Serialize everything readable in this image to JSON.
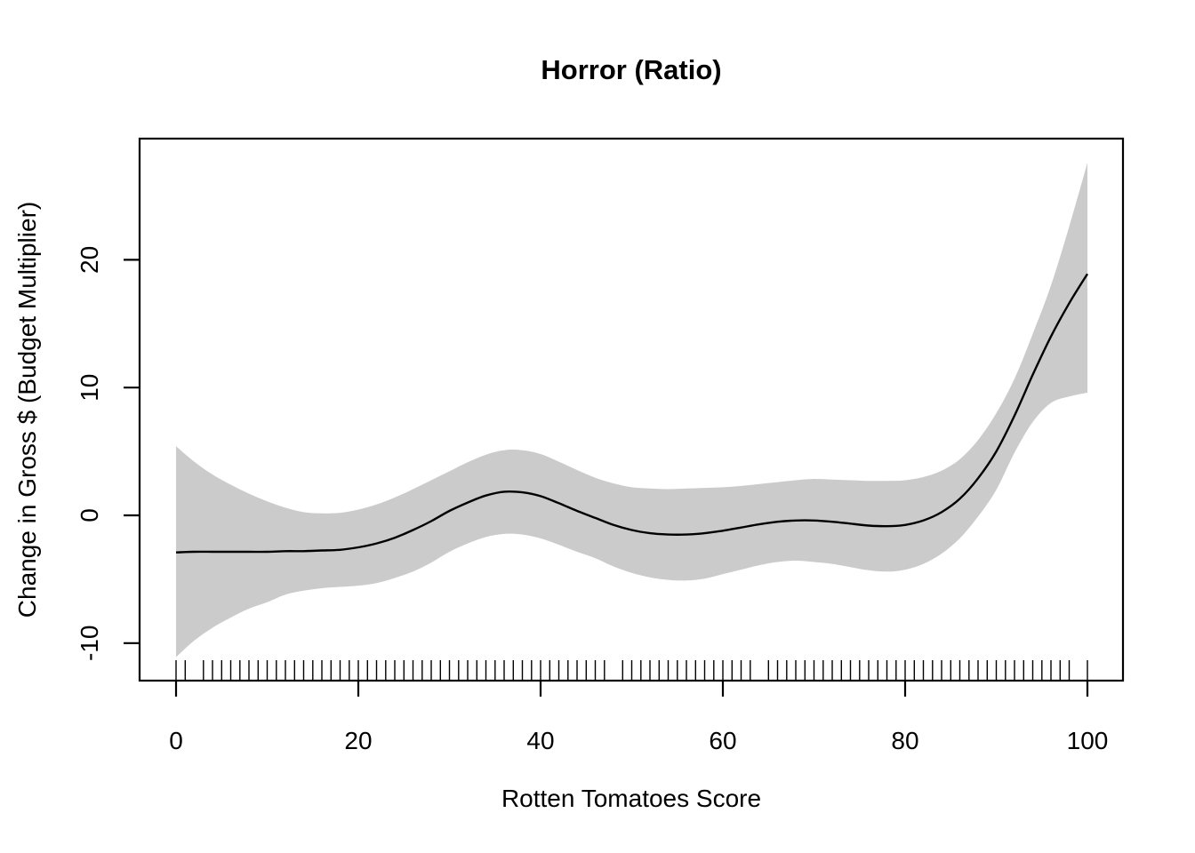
{
  "figure": {
    "background": "#FFFFFF",
    "foreground": "#000000"
  },
  "chart_data": {
    "type": "line",
    "title": "Horror (Ratio)",
    "xlabel": "Rotten Tomatoes Score",
    "ylabel": "Change in Gross $ (Budget Multiplier)",
    "x_ticks": [
      0,
      20,
      40,
      60,
      80,
      100
    ],
    "y_ticks": [
      -10,
      0,
      10,
      20
    ],
    "xlim": [
      -4,
      104
    ],
    "ylim": [
      -12.9,
      29.5
    ],
    "grid": false,
    "legend_position": "none",
    "band_color": "#CBCBCB",
    "line_color": "#000000",
    "series": [
      {
        "name": "smooth-estimate",
        "x": [
          0,
          2,
          4,
          6,
          8,
          10,
          12,
          14,
          16,
          18,
          20,
          22,
          24,
          26,
          28,
          30,
          32,
          34,
          36,
          38,
          40,
          42,
          44,
          46,
          48,
          50,
          52,
          54,
          56,
          58,
          60,
          62,
          64,
          66,
          68,
          70,
          72,
          74,
          76,
          78,
          80,
          82,
          84,
          86,
          88,
          90,
          92,
          94,
          96,
          98,
          100
        ],
        "y": [
          -2.9,
          -2.85,
          -2.85,
          -2.85,
          -2.85,
          -2.85,
          -2.8,
          -2.8,
          -2.75,
          -2.7,
          -2.5,
          -2.2,
          -1.75,
          -1.15,
          -0.45,
          0.35,
          1.0,
          1.55,
          1.85,
          1.8,
          1.5,
          0.95,
          0.35,
          -0.2,
          -0.75,
          -1.15,
          -1.4,
          -1.5,
          -1.5,
          -1.4,
          -1.2,
          -0.95,
          -0.7,
          -0.5,
          -0.4,
          -0.4,
          -0.5,
          -0.65,
          -0.8,
          -0.85,
          -0.75,
          -0.4,
          0.25,
          1.3,
          2.9,
          5.0,
          7.8,
          11.0,
          14.0,
          16.6,
          18.9
        ]
      }
    ],
    "confidence_band": {
      "x": [
        0,
        2,
        4,
        6,
        8,
        10,
        12,
        14,
        16,
        18,
        20,
        22,
        24,
        26,
        28,
        30,
        32,
        34,
        36,
        38,
        40,
        42,
        44,
        46,
        48,
        50,
        52,
        54,
        56,
        58,
        60,
        62,
        64,
        66,
        68,
        70,
        72,
        74,
        76,
        78,
        80,
        82,
        84,
        86,
        88,
        90,
        92,
        94,
        96,
        98,
        100
      ],
      "upper": [
        5.4,
        4.2,
        3.2,
        2.4,
        1.7,
        1.1,
        0.6,
        0.25,
        0.15,
        0.2,
        0.45,
        0.85,
        1.4,
        2.05,
        2.75,
        3.45,
        4.15,
        4.75,
        5.1,
        5.1,
        4.8,
        4.2,
        3.55,
        2.95,
        2.5,
        2.2,
        2.1,
        2.05,
        2.1,
        2.15,
        2.2,
        2.3,
        2.45,
        2.6,
        2.75,
        2.85,
        2.8,
        2.75,
        2.7,
        2.7,
        2.75,
        3.0,
        3.5,
        4.4,
        5.9,
        8.0,
        10.7,
        14.2,
        18.0,
        22.6,
        27.6
      ],
      "lower": [
        -11.1,
        -9.8,
        -8.8,
        -8.0,
        -7.3,
        -6.8,
        -6.2,
        -5.9,
        -5.7,
        -5.6,
        -5.5,
        -5.3,
        -4.9,
        -4.4,
        -3.7,
        -2.85,
        -2.2,
        -1.7,
        -1.45,
        -1.5,
        -1.8,
        -2.3,
        -2.85,
        -3.35,
        -4.0,
        -4.5,
        -4.85,
        -5.05,
        -5.1,
        -4.95,
        -4.6,
        -4.25,
        -3.9,
        -3.65,
        -3.55,
        -3.65,
        -3.8,
        -4.05,
        -4.3,
        -4.4,
        -4.25,
        -3.8,
        -3.0,
        -1.8,
        -0.1,
        2.0,
        4.9,
        7.3,
        8.8,
        9.3,
        9.6
      ]
    },
    "rug_x": [
      0,
      1,
      3,
      4,
      5,
      6,
      7,
      8,
      9,
      10,
      11,
      12,
      13,
      14,
      15,
      16,
      17,
      18,
      19,
      20,
      21,
      22,
      23,
      24,
      25,
      26,
      27,
      28,
      29,
      30,
      31,
      32,
      33,
      34,
      35,
      36,
      37,
      38,
      39,
      40,
      41,
      42,
      43,
      44,
      45,
      46,
      47,
      49,
      50,
      51,
      52,
      53,
      54,
      55,
      56,
      57,
      58,
      59,
      60,
      61,
      62,
      63,
      65,
      66,
      67,
      68,
      69,
      70,
      71,
      72,
      73,
      74,
      75,
      76,
      77,
      78,
      79,
      80,
      81,
      82,
      83,
      84,
      85,
      86,
      87,
      88,
      89,
      90,
      91,
      92,
      93,
      94,
      95,
      96,
      97,
      98,
      100
    ]
  }
}
